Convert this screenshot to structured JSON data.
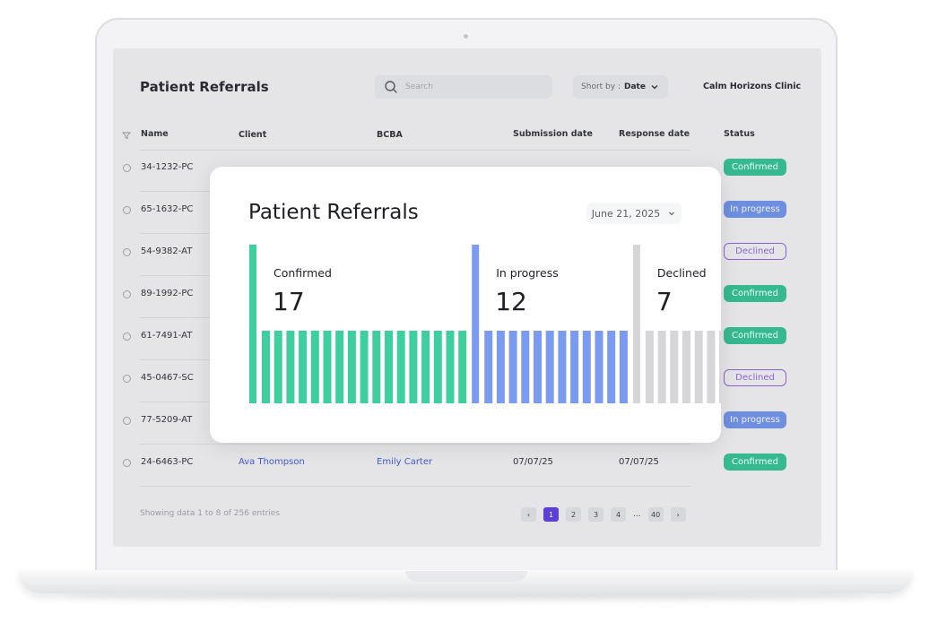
{
  "header": {
    "title": "Patient Referrals",
    "search_placeholder": "Search",
    "sort_label": "Short by :",
    "sort_value": "Date",
    "clinic": "Calm Horizons Clinic"
  },
  "table": {
    "columns": [
      "Name",
      "Client",
      "BCBA",
      "Submission date",
      "Response date",
      "Status"
    ],
    "rows": [
      {
        "name": "34-1232-PC",
        "status": "Confirmed"
      },
      {
        "name": "65-1632-PC",
        "status": "In progress"
      },
      {
        "name": "54-9382-AT",
        "status": "Declined"
      },
      {
        "name": "89-1992-PC",
        "status": "Confirmed"
      },
      {
        "name": "61-7491-AT",
        "status": "Confirmed"
      },
      {
        "name": "45-0467-SC",
        "status": "Declined"
      },
      {
        "name": "77-5209-AT",
        "status": "In progress"
      },
      {
        "name": "24-6463-PC",
        "client": "Ava Thompson",
        "bcba": "Emily Carter",
        "submission": "07/07/25",
        "response": "07/07/25",
        "status": "Confirmed"
      }
    ]
  },
  "footer": {
    "showing": "Showing data 1 to 8 of  256 entries",
    "pages": [
      "1",
      "2",
      "3",
      "4"
    ],
    "ellipsis": "...",
    "last_page": "40",
    "prev": "‹",
    "next": "›"
  },
  "card": {
    "title": "Patient Referrals",
    "date": "June 21, 2025"
  },
  "chart_data": {
    "type": "bar",
    "categories": [
      "Confirmed",
      "In progress",
      "Declined"
    ],
    "values": [
      17,
      12,
      7
    ],
    "colors": [
      "#3ecf9e",
      "#7b9bf0",
      "#d6d6d8"
    ]
  },
  "colors": {
    "confirmed": "#36b98e",
    "in_progress": "#6e8ee0",
    "declined": "#8b64d2",
    "active_page": "#5b3fd6"
  }
}
